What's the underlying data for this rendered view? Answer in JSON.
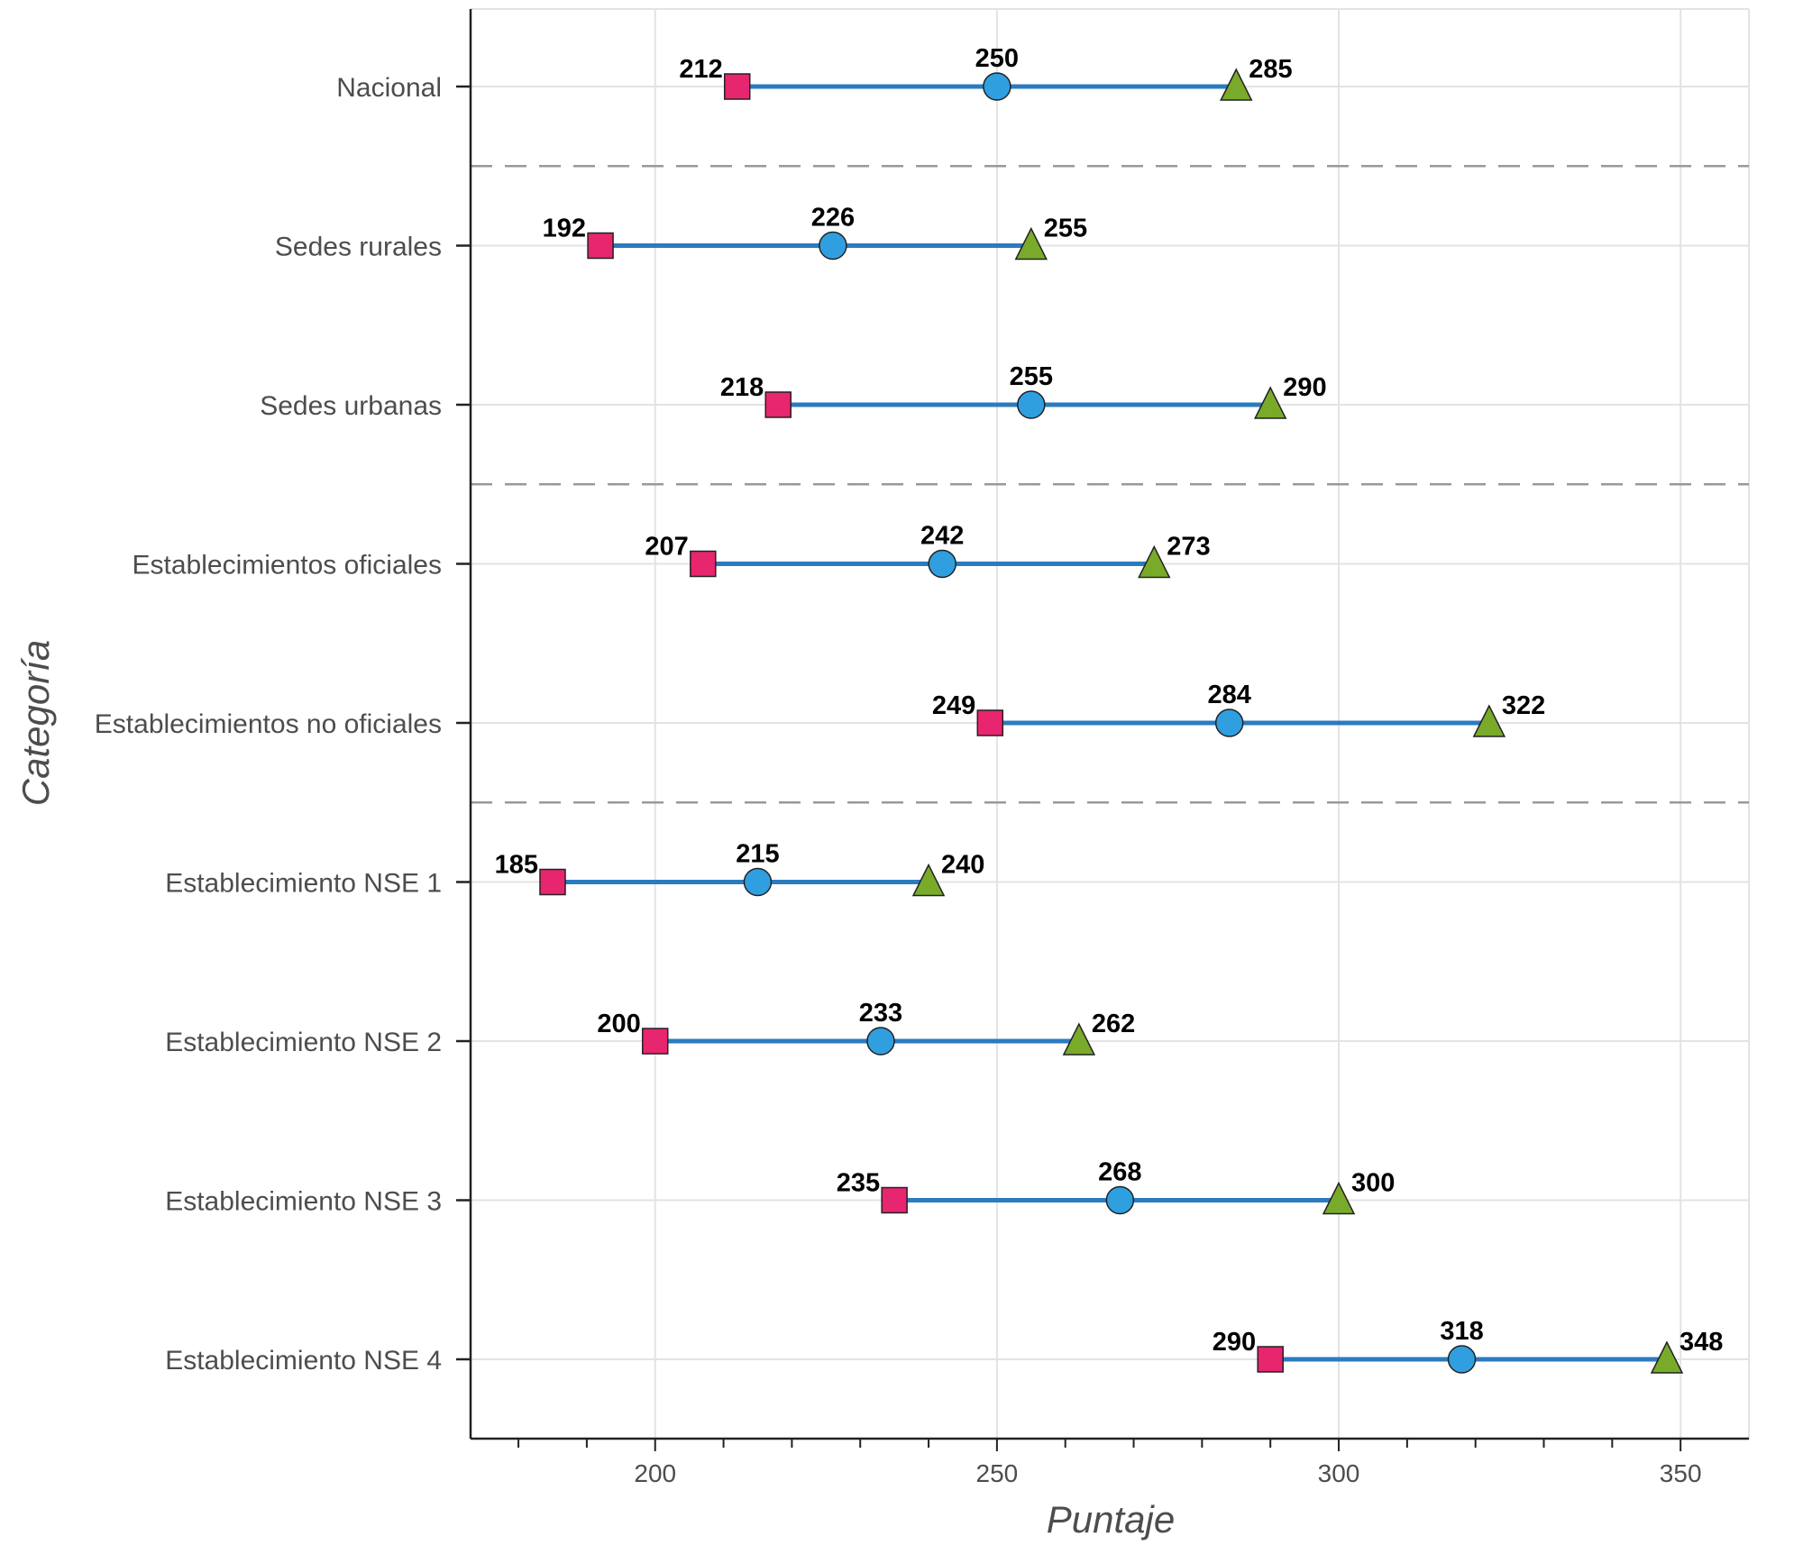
{
  "chart_data": {
    "type": "dumbbell",
    "xlabel": "Puntaje",
    "ylabel": "Categoría",
    "xlim": [
      173,
      360
    ],
    "xticks": [
      200,
      250,
      300,
      350
    ],
    "xticks_labels": [
      "200",
      "250",
      "300",
      "350"
    ],
    "grid": true,
    "categories": [
      "Nacional",
      "Sedes rurales",
      "Sedes urbanas",
      "Establecimientos oficiales",
      "Establecimientos no oficiales",
      "Establecimiento NSE 1",
      "Establecimiento NSE 2",
      "Establecimiento NSE 3",
      "Establecimiento NSE 4"
    ],
    "group_separators_after": [
      "Nacional",
      "Sedes urbanas",
      "Establecimientos no oficiales"
    ],
    "series": [
      {
        "marker": "square",
        "color": "#e8256f",
        "values": [
          212,
          192,
          218,
          207,
          249,
          185,
          200,
          235,
          290
        ],
        "labels": [
          "212",
          "192",
          "218",
          "207",
          "249",
          "185",
          "200",
          "235",
          "290"
        ]
      },
      {
        "marker": "circle",
        "color": "#2f9fe0",
        "values": [
          250,
          226,
          255,
          242,
          284,
          215,
          233,
          268,
          318
        ],
        "labels": [
          "250",
          "226",
          "255",
          "242",
          "284",
          "215",
          "233",
          "268",
          "318"
        ]
      },
      {
        "marker": "triangle",
        "color": "#7aaa2a",
        "values": [
          285,
          255,
          290,
          273,
          322,
          240,
          262,
          300,
          348
        ],
        "labels": [
          "285",
          "255",
          "290",
          "273",
          "322",
          "240",
          "262",
          "300",
          "348"
        ]
      }
    ],
    "line_color": "#2b7bbf",
    "separator_color": "#999999"
  }
}
